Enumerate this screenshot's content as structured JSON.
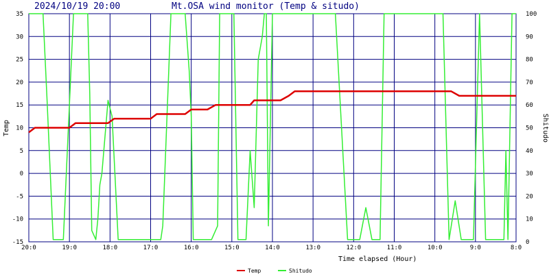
{
  "header": {
    "datetime": "2024/10/19 20:00",
    "title": "Mt.OSA wind monitor (Temp & situdo)"
  },
  "chart_data": {
    "type": "line",
    "title": "Mt.OSA wind monitor (Temp & situdo)",
    "xlabel": "Time elapsed (Hour)",
    "ylabel_left": "Temp",
    "ylabel_right": "Shitudo",
    "ylim_left": [
      -15,
      35
    ],
    "ylim_right": [
      0,
      100
    ],
    "xlim": [
      0,
      12
    ],
    "x_ticks": [
      0,
      1,
      2,
      3,
      4,
      5,
      6,
      7,
      8,
      9,
      10,
      11,
      12
    ],
    "x_tick_labels": [
      "20:0",
      "19:0",
      "18:0",
      "17:0",
      "16:0",
      "15:0",
      "14:0",
      "13:0",
      "12:0",
      "11:0",
      "10:0",
      "9:0",
      "8:0"
    ],
    "y_left_ticks": [
      -15,
      -10,
      -5,
      0,
      5,
      10,
      15,
      20,
      25,
      30,
      35
    ],
    "y_right_ticks": [
      0,
      10,
      20,
      30,
      40,
      50,
      60,
      70,
      80,
      90,
      100
    ],
    "grid": true,
    "legend_position": "bottom-center",
    "series": [
      {
        "name": "Temp",
        "axis": "left",
        "color": "#dd0000",
        "x": [
          0,
          0.15,
          0.3,
          1.0,
          1.15,
          1.3,
          1.95,
          2.1,
          2.3,
          3.0,
          3.15,
          3.3,
          3.85,
          4.0,
          4.2,
          4.4,
          4.6,
          4.75,
          5.0,
          5.45,
          5.55,
          5.75,
          6.0,
          6.2,
          6.4,
          6.55,
          6.8,
          7.0,
          7.5,
          8.0,
          9.0,
          10.0,
          10.4,
          10.6,
          11.0,
          11.5,
          12.0
        ],
        "y": [
          9,
          10,
          10,
          10,
          11,
          11,
          11,
          12,
          12,
          12,
          13,
          13,
          13,
          14,
          14,
          14,
          15,
          15,
          15,
          15,
          16,
          16,
          16,
          16,
          17,
          18,
          18,
          18,
          18,
          18,
          18,
          18,
          18,
          17,
          17,
          17,
          17
        ]
      },
      {
        "name": "Shitudo",
        "axis": "right",
        "color": "#33ee33",
        "x": [
          0,
          0.15,
          0.25,
          0.35,
          0.45,
          0.6,
          0.75,
          0.85,
          1.1,
          1.25,
          1.35,
          1.45,
          1.5,
          1.55,
          1.65,
          1.7,
          1.75,
          1.8,
          1.95,
          2.05,
          2.2,
          2.35,
          2.45,
          2.6,
          2.75,
          3.0,
          3.15,
          3.2,
          3.25,
          3.3,
          3.5,
          3.75,
          3.8,
          3.85,
          3.95,
          4.0,
          4.05,
          4.15,
          4.25,
          4.4,
          4.5,
          4.65,
          4.7,
          4.8,
          4.95,
          5.05,
          5.15,
          5.25,
          5.35,
          5.45,
          5.55,
          5.65,
          5.75,
          5.8,
          5.85,
          5.9,
          6.0,
          6.2,
          6.4,
          6.55,
          6.8,
          6.95,
          7.15,
          7.35,
          7.55,
          7.85,
          8.0,
          8.15,
          8.3,
          8.45,
          8.55,
          8.65,
          8.75,
          8.85,
          8.95,
          9.05,
          9.2,
          9.3,
          9.55,
          9.7,
          9.85,
          10.0,
          10.2,
          10.35,
          10.5,
          10.65,
          10.8,
          10.95,
          11.1,
          11.25,
          11.45,
          11.6,
          11.7,
          11.75,
          11.8,
          11.9,
          12.0
        ],
        "y": [
          100,
          100,
          100,
          100,
          62,
          1,
          1,
          1,
          100,
          100,
          100,
          100,
          65,
          5,
          1,
          10,
          25,
          30,
          62,
          55,
          1,
          1,
          1,
          1,
          1,
          1,
          1,
          1,
          1,
          7,
          100,
          100,
          100,
          100,
          75,
          55,
          1,
          1,
          1,
          1,
          1,
          7,
          100,
          100,
          100,
          100,
          1,
          1,
          1,
          40,
          15,
          80,
          90,
          100,
          100,
          7,
          100,
          100,
          100,
          100,
          100,
          100,
          100,
          100,
          100,
          1,
          1,
          1,
          15,
          1,
          1,
          1,
          100,
          100,
          100,
          100,
          100,
          100,
          100,
          100,
          100,
          100,
          100,
          1,
          18,
          1,
          1,
          1,
          100,
          1,
          1,
          1,
          1,
          40,
          1,
          100,
          100
        ]
      }
    ]
  }
}
